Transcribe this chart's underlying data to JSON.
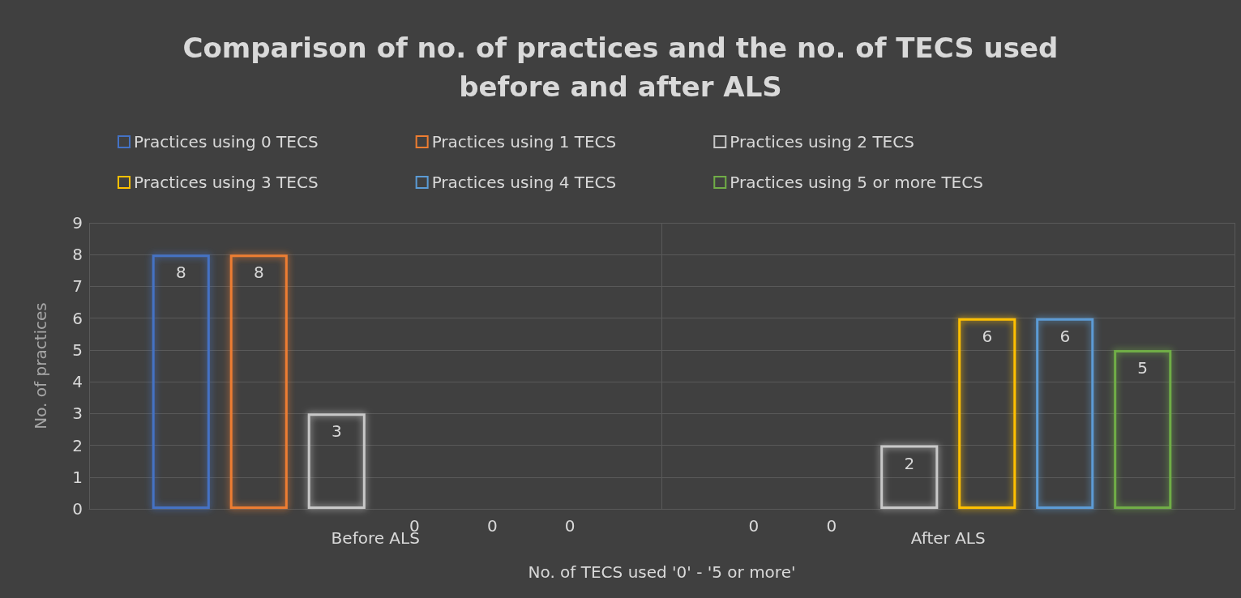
{
  "chart_data": {
    "type": "bar",
    "title": "Comparison of no. of practices and the no. of TECS used\nbefore and after ALS",
    "xlabel": "No. of TECS used '0' - '5 or more'",
    "ylabel": "No. of practices",
    "categories": [
      "Before ALS",
      "After ALS"
    ],
    "series": [
      {
        "name": "Practices using 0 TECS",
        "color": "#4472c4",
        "values": [
          8,
          0
        ]
      },
      {
        "name": "Practices using 1 TECS",
        "color": "#ed7d31",
        "values": [
          8,
          0
        ]
      },
      {
        "name": "Practices using 2 TECS",
        "color": "#c8c8c8",
        "values": [
          3,
          2
        ]
      },
      {
        "name": "Practices using 3 TECS",
        "color": "#ffc000",
        "values": [
          0,
          6
        ]
      },
      {
        "name": "Practices using 4 TECS",
        "color": "#5b9bd5",
        "values": [
          0,
          6
        ]
      },
      {
        "name": "Practices using 5 or more TECS",
        "color": "#70ad47",
        "values": [
          0,
          5
        ]
      }
    ],
    "ylim": [
      0,
      9
    ],
    "yticks": [
      0,
      1,
      2,
      3,
      4,
      5,
      6,
      7,
      8,
      9
    ],
    "grid": true,
    "legend": "top",
    "data_labels": true
  }
}
